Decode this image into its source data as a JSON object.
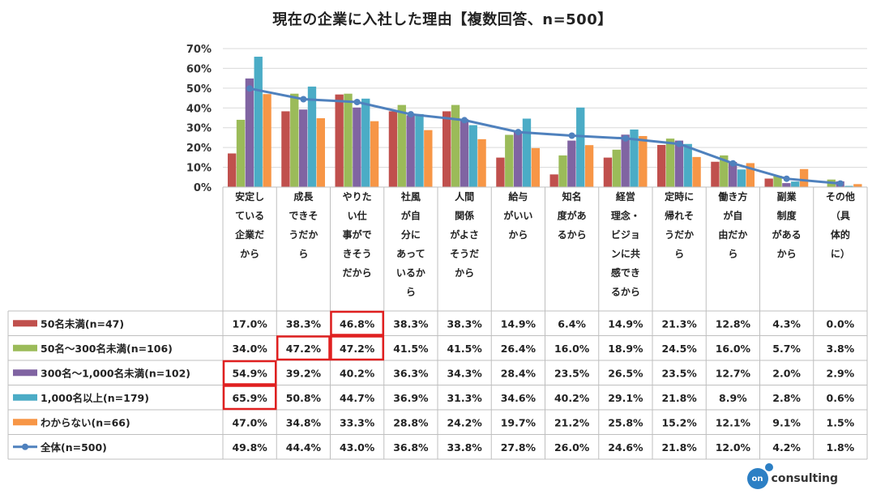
{
  "chart_data": {
    "type": "bar",
    "title": "現在の企業に入社した理由【複数回答、n=500】",
    "ylim": [
      0,
      70
    ],
    "yticks": [
      "0%",
      "10%",
      "20%",
      "30%",
      "40%",
      "50%",
      "60%",
      "70%"
    ],
    "categories": [
      [
        "安定し",
        "ている",
        "企業だ",
        "から"
      ],
      [
        "成長",
        "できそ",
        "うだか",
        "ら"
      ],
      [
        "やりた",
        "い仕",
        "事がで",
        "きそう",
        "だから"
      ],
      [
        "社風",
        "が自",
        "分に",
        "あって",
        "いるか",
        "ら"
      ],
      [
        "人間",
        "関係",
        "がよさ",
        "そうだ",
        "から"
      ],
      [
        "給与",
        "がいい",
        "から"
      ],
      [
        "知名",
        "度があ",
        "るから"
      ],
      [
        "経営",
        "理念・",
        "ビジョ",
        "ンに共",
        "感でき",
        "るから"
      ],
      [
        "定時に",
        "帰れそ",
        "うだか",
        "ら"
      ],
      [
        "働き方",
        "が自",
        "由だか",
        "ら"
      ],
      [
        "副業",
        "制度",
        "がある",
        "から"
      ],
      [
        "その他",
        "（具",
        "体的",
        "に）"
      ]
    ],
    "series": [
      {
        "name": "50名未満(n=47)",
        "color": "#c0504d",
        "values": [
          17.0,
          38.3,
          46.8,
          38.3,
          38.3,
          14.9,
          6.4,
          14.9,
          21.3,
          12.8,
          4.3,
          0.0
        ],
        "labels": [
          "17.0%",
          "38.3%",
          "46.8%",
          "38.3%",
          "38.3%",
          "14.9%",
          "6.4%",
          "14.9%",
          "21.3%",
          "12.8%",
          "4.3%",
          "0.0%"
        ]
      },
      {
        "name": "50名～300名未満(n=106)",
        "color": "#9bbb59",
        "values": [
          34.0,
          47.2,
          47.2,
          41.5,
          41.5,
          26.4,
          16.0,
          18.9,
          24.5,
          16.0,
          5.7,
          3.8
        ],
        "labels": [
          "34.0%",
          "47.2%",
          "47.2%",
          "41.5%",
          "41.5%",
          "26.4%",
          "16.0%",
          "18.9%",
          "24.5%",
          "16.0%",
          "5.7%",
          "3.8%"
        ]
      },
      {
        "name": "300名～1,000名未満(n=102)",
        "color": "#8064a2",
        "values": [
          54.9,
          39.2,
          40.2,
          36.3,
          34.3,
          28.4,
          23.5,
          26.5,
          23.5,
          12.7,
          2.0,
          2.9
        ],
        "labels": [
          "54.9%",
          "39.2%",
          "40.2%",
          "36.3%",
          "34.3%",
          "28.4%",
          "23.5%",
          "26.5%",
          "23.5%",
          "12.7%",
          "2.0%",
          "2.9%"
        ]
      },
      {
        "name": "1,000名以上(n=179)",
        "color": "#4bacc6",
        "values": [
          65.9,
          50.8,
          44.7,
          36.9,
          31.3,
          34.6,
          40.2,
          29.1,
          21.8,
          8.9,
          2.8,
          0.6
        ],
        "labels": [
          "65.9%",
          "50.8%",
          "44.7%",
          "36.9%",
          "31.3%",
          "34.6%",
          "40.2%",
          "29.1%",
          "21.8%",
          "8.9%",
          "2.8%",
          "0.6%"
        ]
      },
      {
        "name": "わからない(n=66)",
        "color": "#f79646",
        "values": [
          47.0,
          34.8,
          33.3,
          28.8,
          24.2,
          19.7,
          21.2,
          25.8,
          15.2,
          12.1,
          9.1,
          1.5
        ],
        "labels": [
          "47.0%",
          "34.8%",
          "33.3%",
          "28.8%",
          "24.2%",
          "19.7%",
          "21.2%",
          "25.8%",
          "15.2%",
          "12.1%",
          "9.1%",
          "1.5%"
        ]
      }
    ],
    "line_series": {
      "name": "全体(n=500)",
      "color": "#4f81bd",
      "values": [
        49.8,
        44.4,
        43.0,
        36.8,
        33.8,
        27.8,
        26.0,
        24.6,
        21.8,
        12.0,
        4.2,
        1.8
      ],
      "labels": [
        "49.8%",
        "44.4%",
        "43.0%",
        "36.8%",
        "33.8%",
        "27.8%",
        "26.0%",
        "24.6%",
        "21.8%",
        "12.0%",
        "4.2%",
        "1.8%"
      ]
    },
    "highlighted_cells": [
      [
        0,
        2
      ],
      [
        1,
        1
      ],
      [
        1,
        2
      ],
      [
        2,
        0
      ],
      [
        3,
        0
      ]
    ],
    "highlight_color": "#e02020"
  },
  "logo": {
    "mark": "on",
    "text": "consulting"
  }
}
